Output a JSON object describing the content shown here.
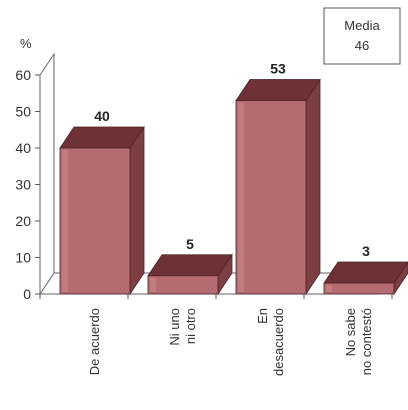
{
  "chart_data": {
    "type": "bar",
    "style": "3d",
    "categories": [
      [
        "De acuerdo"
      ],
      [
        "Ni uno",
        "ni otro"
      ],
      [
        "En",
        "desacuerdo"
      ],
      [
        "No sabe",
        "no contestó"
      ]
    ],
    "values": [
      40,
      5,
      53,
      3
    ],
    "data_labels": [
      "40",
      "5",
      "53",
      "3"
    ],
    "y_unit": "%",
    "ylim": [
      0,
      60
    ],
    "yticks": [
      0,
      10,
      20,
      30,
      40,
      50,
      60
    ],
    "grid": false,
    "annotation": {
      "label": "Media",
      "value": "46",
      "position": "top-right"
    },
    "colors": {
      "front": "#b56c70",
      "side": "#7d3e42",
      "top": "#6e3236",
      "highlight": "#d08a8e"
    }
  }
}
